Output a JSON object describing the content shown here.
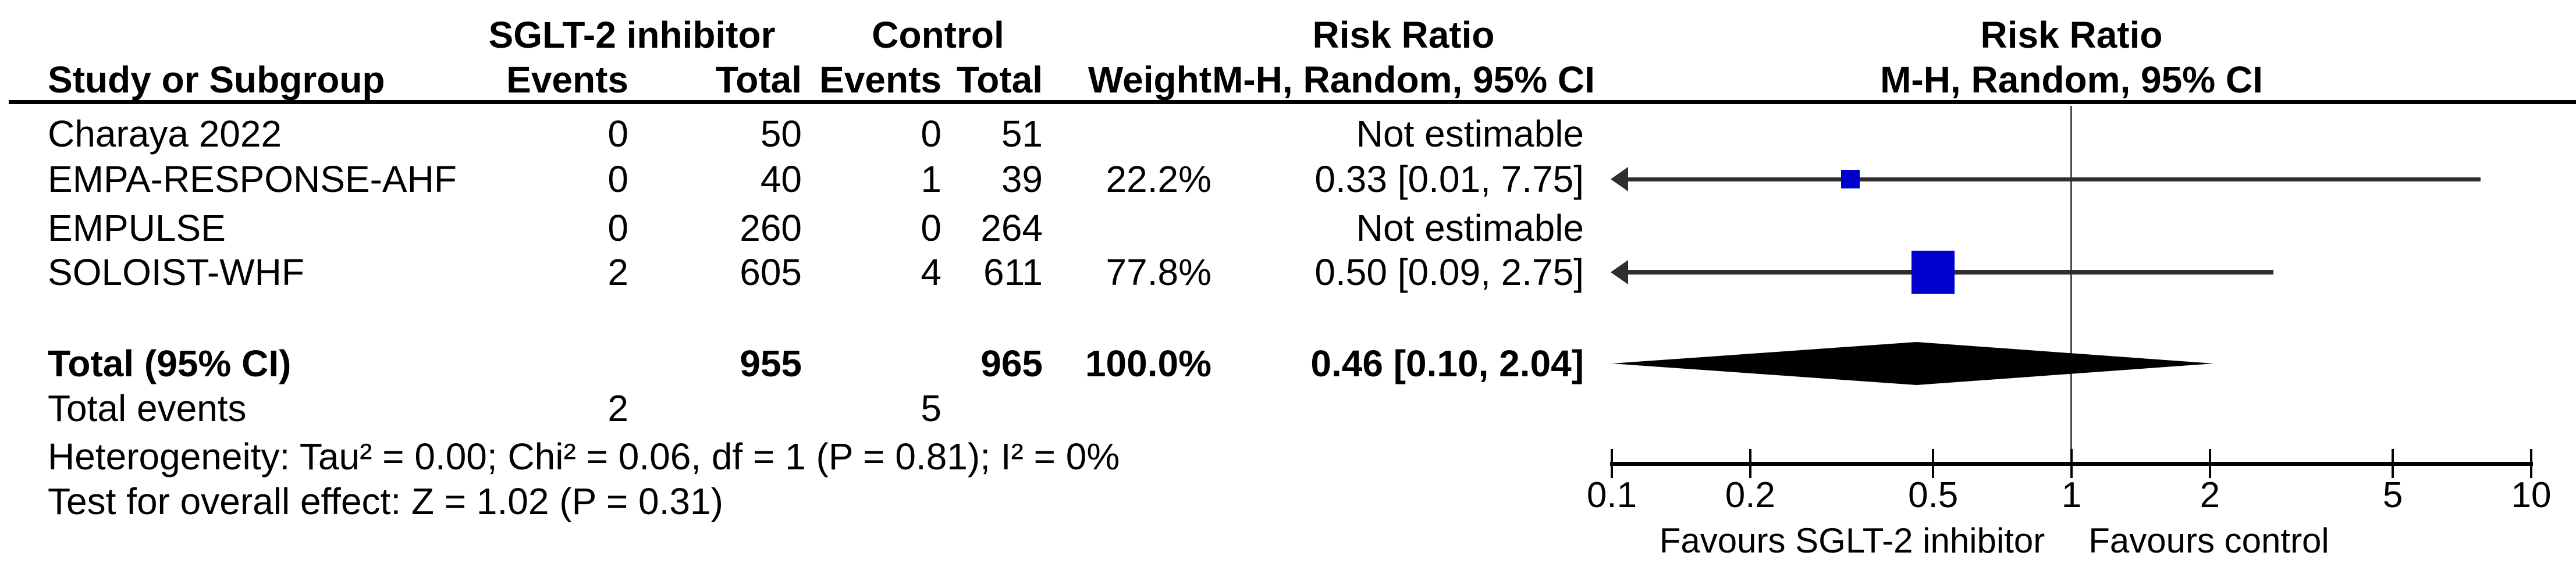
{
  "chart_data": {
    "type": "forest",
    "effect_measure": "Risk Ratio",
    "model": "M-H, Random, 95% CI",
    "header": {
      "study": "Study or Subgroup",
      "group1": "SGLT-2 inhibitor",
      "group2": "Control",
      "events": "Events",
      "total": "Total",
      "weight": "Weight",
      "risk_ratio": "Risk Ratio",
      "mh_ci": "M-H, Random, 95% CI"
    },
    "studies": [
      {
        "name": "Charaya 2022",
        "events1": "0",
        "total1": "50",
        "events2": "0",
        "total2": "51",
        "weight": "",
        "rr_text": "Not estimable",
        "estimable": false
      },
      {
        "name": "EMPA-RESPONSE-AHF",
        "events1": "0",
        "total1": "40",
        "events2": "1",
        "total2": "39",
        "weight": "22.2%",
        "rr_text": "0.33 [0.01, 7.75]",
        "estimable": true,
        "point": 0.33,
        "lower": 0.01,
        "upper": 7.75,
        "weight_value": 22.2
      },
      {
        "name": "EMPULSE",
        "events1": "0",
        "total1": "260",
        "events2": "0",
        "total2": "264",
        "weight": "",
        "rr_text": "Not estimable",
        "estimable": false
      },
      {
        "name": "SOLOIST-WHF",
        "events1": "2",
        "total1": "605",
        "events2": "4",
        "total2": "611",
        "weight": "77.8%",
        "rr_text": "0.50 [0.09, 2.75]",
        "estimable": true,
        "point": 0.5,
        "lower": 0.09,
        "upper": 2.75,
        "weight_value": 77.8
      }
    ],
    "total": {
      "label": "Total (95% CI)",
      "total1": "955",
      "total2": "965",
      "weight": "100.0%",
      "rr_text": "0.46 [0.10, 2.04]",
      "point": 0.46,
      "lower": 0.1,
      "upper": 2.04
    },
    "total_events": {
      "label": "Total events",
      "events1": "2",
      "events2": "5"
    },
    "heterogeneity": "Heterogeneity: Tau² = 0.00; Chi² = 0.06, df = 1 (P = 0.81); I² = 0%",
    "overall_effect": "Test for overall effect: Z = 1.02 (P = 0.31)",
    "axis": {
      "scale": "log",
      "min": 0.1,
      "max": 10,
      "ticks": [
        0.1,
        0.2,
        0.5,
        1,
        2,
        5,
        10
      ],
      "tick_labels": [
        "0.1",
        "0.2",
        "0.5",
        "1",
        "2",
        "5",
        "10"
      ]
    },
    "favours_left": "Favours SGLT-2 inhibitor",
    "favours_right": "Favours control",
    "colors": {
      "marker": "#0000CD",
      "ci_line": "#2e2e2e",
      "diamond": "#000000",
      "axis": "#000000",
      "null_line": "#4a4a4a"
    }
  }
}
